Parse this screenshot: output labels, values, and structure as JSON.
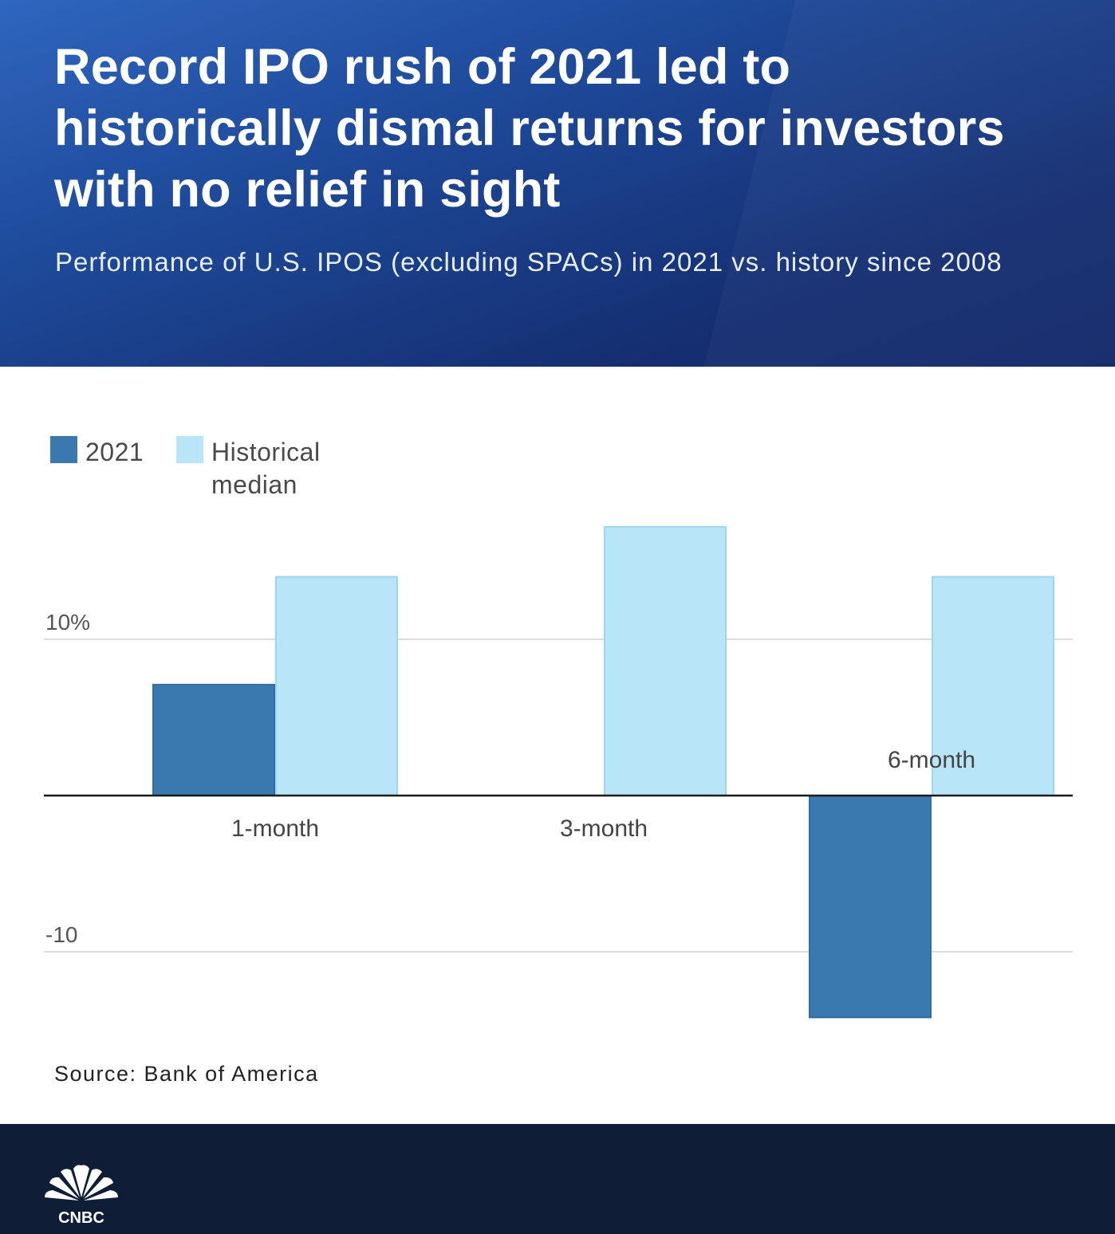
{
  "header": {
    "title": "Record IPO rush of 2021 led to historically dismal returns for investors with no relief in sight",
    "subtitle": "Performance of U.S. IPOS (excluding SPACs) in 2021 vs. history since 2008"
  },
  "chart_data": {
    "type": "bar",
    "categories": [
      "1-month",
      "3-month",
      "6-month"
    ],
    "series": [
      {
        "name": "2021",
        "values": [
          7.1,
          0.0,
          -14.2
        ],
        "color": "#3a78b0"
      },
      {
        "name": "Historical median",
        "values": [
          14.0,
          17.2,
          14.0
        ],
        "color": "#b8e6f8"
      }
    ],
    "y_tick_labels": [
      "10%",
      "-10"
    ],
    "y_ticks": [
      10,
      -10
    ],
    "ylim": [
      -17,
      20
    ],
    "legend_position": "top-left",
    "grid": true
  },
  "source": "Source: Bank of America",
  "footer": {
    "logo_text": "CNBC",
    "colors": {
      "background": "#0f1e36",
      "logo": "#ffffff"
    }
  }
}
